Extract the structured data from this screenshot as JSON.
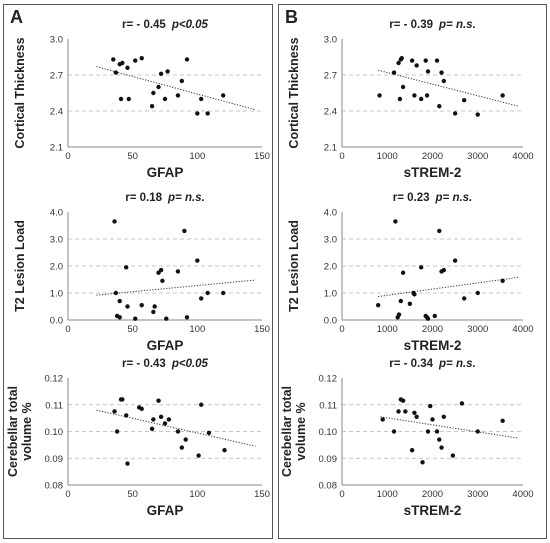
{
  "panels": [
    {
      "letter": "A",
      "plots": [
        {
          "stat_r": "r= - 0.45",
          "stat_p": "p<0.05",
          "ylabel": [
            "Cortical Thickness"
          ],
          "xlabel": "GFAP",
          "yticks": [
            "2.1",
            "2.4",
            "2.7",
            "3.0"
          ],
          "xticks": [
            "0",
            "50",
            "100",
            "150"
          ],
          "xlim": [
            0,
            150
          ],
          "ylim": [
            2.1,
            3.0
          ]
        },
        {
          "stat_r": "r= 0.18",
          "stat_p": "p= n.s.",
          "ylabel": [
            "T2 Lesion Load"
          ],
          "xlabel": "GFAP",
          "yticks": [
            "0.0",
            "1.0",
            "2.0",
            "3.0",
            "4.0"
          ],
          "xticks": [
            "0",
            "50",
            "100",
            "150"
          ],
          "xlim": [
            0,
            150
          ],
          "ylim": [
            0,
            4
          ]
        },
        {
          "stat_r": "r= - 0.43",
          "stat_p": "p<0.05",
          "ylabel": [
            "Cerebellar total",
            "volume %"
          ],
          "xlabel": "GFAP",
          "yticks": [
            "0.08",
            "0.09",
            "0.10",
            "0.11",
            "0.12"
          ],
          "xticks": [
            "0",
            "50",
            "100",
            "150"
          ],
          "xlim": [
            0,
            150
          ],
          "ylim": [
            0.08,
            0.12
          ]
        }
      ]
    },
    {
      "letter": "B",
      "plots": [
        {
          "stat_r": "r= - 0.39",
          "stat_p": "p= n.s.",
          "ylabel": [
            "Cortical Thickness"
          ],
          "xlabel": "sTREM-2",
          "yticks": [
            "2.1",
            "2.4",
            "2.7",
            "3.0"
          ],
          "xticks": [
            "0",
            "1000",
            "2000",
            "3000",
            "4000"
          ],
          "xlim": [
            0,
            4000
          ],
          "ylim": [
            2.1,
            3.0
          ]
        },
        {
          "stat_r": "r= 0.23",
          "stat_p": "p= n.s.",
          "ylabel": [
            "T2 Lesion Load"
          ],
          "xlabel": "sTREM-2",
          "yticks": [
            "0.0",
            "1.0",
            "2.0",
            "3.0",
            "4.0"
          ],
          "xticks": [
            "0",
            "1000",
            "2000",
            "3000",
            "4000"
          ],
          "xlim": [
            0,
            4000
          ],
          "ylim": [
            0,
            4
          ]
        },
        {
          "stat_r": "r= - 0.34",
          "stat_p": "p= n.s.",
          "ylabel": [
            "Cerebellar total",
            "volume %"
          ],
          "xlabel": "sTREM-2",
          "yticks": [
            "0.08",
            "0.09",
            "0.10",
            "0.11",
            "0.12"
          ],
          "xticks": [
            "0",
            "1000",
            "2000",
            "3000",
            "4000"
          ],
          "xlim": [
            0,
            4000
          ],
          "ylim": [
            0.08,
            0.12
          ]
        }
      ]
    }
  ],
  "chart_data": [
    {
      "type": "scatter",
      "xlabel": "GFAP",
      "ylabel": "Cortical Thickness",
      "xlim": [
        0,
        150
      ],
      "ylim": [
        2.1,
        3.0
      ],
      "grid": "horizontal dashed",
      "trendline": "dotted",
      "points": [
        [
          35,
          2.83
        ],
        [
          37,
          2.72
        ],
        [
          40,
          2.79
        ],
        [
          42,
          2.8
        ],
        [
          41,
          2.5
        ],
        [
          47,
          2.5
        ],
        [
          46,
          2.76
        ],
        [
          52,
          2.82
        ],
        [
          57,
          2.84
        ],
        [
          65,
          2.44
        ],
        [
          66,
          2.55
        ],
        [
          70,
          2.6
        ],
        [
          72,
          2.71
        ],
        [
          75,
          2.5
        ],
        [
          77,
          2.73
        ],
        [
          85,
          2.53
        ],
        [
          88,
          2.65
        ],
        [
          92,
          2.83
        ],
        [
          100,
          2.38
        ],
        [
          103,
          2.5
        ],
        [
          108,
          2.38
        ],
        [
          120,
          2.53
        ]
      ],
      "trend": [
        [
          22,
          2.77
        ],
        [
          145,
          2.41
        ]
      ]
    },
    {
      "type": "scatter",
      "xlabel": "GFAP",
      "ylabel": "T2 Lesion Load",
      "xlim": [
        0,
        150
      ],
      "ylim": [
        0,
        4
      ],
      "grid": "horizontal dashed",
      "trendline": "dotted",
      "points": [
        [
          36,
          3.65
        ],
        [
          37,
          1.0
        ],
        [
          38,
          0.15
        ],
        [
          40,
          0.1
        ],
        [
          40,
          0.7
        ],
        [
          45,
          1.95
        ],
        [
          46,
          0.5
        ],
        [
          52,
          0.05
        ],
        [
          57,
          0.55
        ],
        [
          66,
          0.3
        ],
        [
          67,
          0.5
        ],
        [
          70,
          1.75
        ],
        [
          72,
          1.85
        ],
        [
          73,
          1.45
        ],
        [
          76,
          0.05
        ],
        [
          85,
          1.8
        ],
        [
          90,
          3.3
        ],
        [
          92,
          0.1
        ],
        [
          100,
          2.2
        ],
        [
          103,
          0.8
        ],
        [
          108,
          1.0
        ],
        [
          120,
          1.0
        ]
      ],
      "trend": [
        [
          22,
          0.92
        ],
        [
          145,
          1.48
        ]
      ]
    },
    {
      "type": "scatter",
      "xlabel": "GFAP",
      "ylabel": "Cerebellar total volume %",
      "xlim": [
        0,
        150
      ],
      "ylim": [
        0.08,
        0.12
      ],
      "grid": "horizontal dashed",
      "trendline": "dotted",
      "points": [
        [
          36,
          0.1075
        ],
        [
          38,
          0.1
        ],
        [
          41,
          0.112
        ],
        [
          42,
          0.112
        ],
        [
          46,
          0.088
        ],
        [
          45,
          0.106
        ],
        [
          55,
          0.109
        ],
        [
          57,
          0.1085
        ],
        [
          65,
          0.101
        ],
        [
          66,
          0.1045
        ],
        [
          70,
          0.1115
        ],
        [
          72,
          0.1055
        ],
        [
          75,
          0.103
        ],
        [
          78,
          0.1045
        ],
        [
          85,
          0.1
        ],
        [
          88,
          0.094
        ],
        [
          91,
          0.097
        ],
        [
          101,
          0.091
        ],
        [
          103,
          0.11
        ],
        [
          109,
          0.0995
        ],
        [
          121,
          0.093
        ]
      ],
      "trend": [
        [
          22,
          0.108
        ],
        [
          145,
          0.0945
        ]
      ]
    },
    {
      "type": "scatter",
      "xlabel": "sTREM-2",
      "ylabel": "Cortical Thickness",
      "xlim": [
        0,
        4000
      ],
      "ylim": [
        2.1,
        3.0
      ],
      "grid": "horizontal dashed",
      "trendline": "dotted",
      "points": [
        [
          830,
          2.53
        ],
        [
          1150,
          2.72
        ],
        [
          1250,
          2.8
        ],
        [
          1300,
          2.83
        ],
        [
          1320,
          2.84
        ],
        [
          1280,
          2.5
        ],
        [
          1350,
          2.6
        ],
        [
          1550,
          2.82
        ],
        [
          1600,
          2.53
        ],
        [
          1650,
          2.78
        ],
        [
          1750,
          2.5
        ],
        [
          1850,
          2.82
        ],
        [
          1900,
          2.73
        ],
        [
          1880,
          2.53
        ],
        [
          2100,
          2.82
        ],
        [
          2150,
          2.44
        ],
        [
          2200,
          2.72
        ],
        [
          2250,
          2.65
        ],
        [
          2500,
          2.38
        ],
        [
          2700,
          2.49
        ],
        [
          3000,
          2.37
        ],
        [
          3550,
          2.53
        ]
      ],
      "trend": [
        [
          800,
          2.74
        ],
        [
          3900,
          2.44
        ]
      ]
    },
    {
      "type": "scatter",
      "xlabel": "sTREM-2",
      "ylabel": "T2 Lesion Load",
      "xlim": [
        0,
        4000
      ],
      "ylim": [
        0,
        4
      ],
      "grid": "horizontal dashed",
      "trendline": "dotted",
      "points": [
        [
          800,
          0.55
        ],
        [
          1180,
          3.65
        ],
        [
          1230,
          0.1
        ],
        [
          1260,
          0.2
        ],
        [
          1300,
          0.7
        ],
        [
          1350,
          1.75
        ],
        [
          1500,
          0.6
        ],
        [
          1580,
          1.0
        ],
        [
          1600,
          0.95
        ],
        [
          1750,
          1.95
        ],
        [
          1850,
          0.15
        ],
        [
          1880,
          0.1
        ],
        [
          1900,
          0.05
        ],
        [
          2050,
          0.15
        ],
        [
          2150,
          3.3
        ],
        [
          2200,
          1.8
        ],
        [
          2250,
          1.85
        ],
        [
          2500,
          2.2
        ],
        [
          2700,
          0.8
        ],
        [
          3000,
          1.0
        ],
        [
          3550,
          1.45
        ]
      ],
      "trend": [
        [
          800,
          0.87
        ],
        [
          3900,
          1.58
        ]
      ]
    },
    {
      "type": "scatter",
      "xlabel": "sTREM-2",
      "ylabel": "Cerebellar total volume %",
      "xlim": [
        0,
        4000
      ],
      "ylim": [
        0.08,
        0.12
      ],
      "grid": "horizontal dashed",
      "trendline": "dotted",
      "points": [
        [
          900,
          0.1045
        ],
        [
          1150,
          0.1
        ],
        [
          1250,
          0.1075
        ],
        [
          1300,
          0.112
        ],
        [
          1350,
          0.1115
        ],
        [
          1400,
          0.1075
        ],
        [
          1550,
          0.093
        ],
        [
          1600,
          0.107
        ],
        [
          1650,
          0.1055
        ],
        [
          1780,
          0.0885
        ],
        [
          1900,
          0.1
        ],
        [
          1950,
          0.1095
        ],
        [
          2000,
          0.1045
        ],
        [
          2100,
          0.1
        ],
        [
          2150,
          0.097
        ],
        [
          2200,
          0.094
        ],
        [
          2250,
          0.1055
        ],
        [
          2450,
          0.091
        ],
        [
          2650,
          0.1105
        ],
        [
          3000,
          0.1
        ],
        [
          3550,
          0.104
        ]
      ],
      "trend": [
        [
          850,
          0.1055
        ],
        [
          3900,
          0.0975
        ]
      ]
    }
  ]
}
